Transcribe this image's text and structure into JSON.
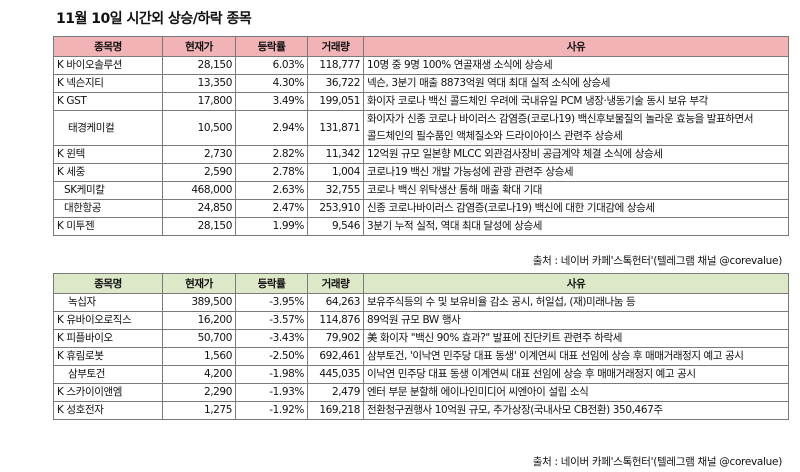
{
  "title": "11월 10일  시간외 상승/하락 종목",
  "headers": [
    "종목명",
    "현재가",
    "등락률",
    "거래량",
    "사유"
  ],
  "rise": [
    {
      "name": "K 바이오솔루션",
      "price": "28,150",
      "change": "6.03%",
      "volume": "118,777",
      "reason": "10명 중 9명 100% 연골재생 소식에 상승세"
    },
    {
      "name": "K 넥슨지티",
      "price": "13,350",
      "change": "4.30%",
      "volume": "36,722",
      "reason": "넥슨, 3분기 매출 8873억원 역대 최대 실적 소식에 상승세"
    },
    {
      "name": "K GST",
      "price": "17,800",
      "change": "3.49%",
      "volume": "199,051",
      "reason": "화이자 코로나 백신 콜드체인 우려에 국내유일 PCM 냉장·냉동기술 동시 보유 부각"
    },
    {
      "name": "태경케미컬",
      "price": "10,500",
      "change": "2.94%",
      "volume": "131,871",
      "reason": "화이자가 신종 코로나 바이러스 감염증(코로나19) 백신후보물질의 놀라운 효능을 발표하면서 콜드체인의 필수품인 액체질소와 드라이아이스 관련주 상승세"
    },
    {
      "name": "K 윈텍",
      "price": "2,730",
      "change": "2.82%",
      "volume": "11,342",
      "reason": "12억원 규모 일본향 MLCC 외관검사장비 공급계약 체결 소식에 상승세"
    },
    {
      "name": "K 세중",
      "price": "2,590",
      "change": "2.78%",
      "volume": "1,004",
      "reason": "코로나19 백신 개발 가능성에 관광 관련주 상승세"
    },
    {
      "name": "SK케미칼",
      "price": "468,000",
      "change": "2.63%",
      "volume": "32,755",
      "reason": "코로나 백신 위탁생산 통해 매출 확대 기대"
    },
    {
      "name": "대한항공",
      "price": "24,850",
      "change": "2.47%",
      "volume": "253,910",
      "reason": "신종 코로나바이러스 감염증(코로나19) 백신에 대한 기대감에 상승세"
    },
    {
      "name": "K 미투젠",
      "price": "28,150",
      "change": "1.99%",
      "volume": "9,546",
      "reason": "3분기 누적 실적, 역대 최대 달성에 상승세"
    }
  ],
  "source1": "출처 : 네이버 카페'스톡헌터'(텔레그램 채널 @corevalue)",
  "fall": [
    {
      "name": "녹십자",
      "price": "389,500",
      "change": "-3.95%",
      "volume": "64,263",
      "reason": "보유주식등의 수 및 보유비율 감소 공시, 허일섭, (재)미래나눔 등"
    },
    {
      "name": "K 유바이오로직스",
      "price": "16,200",
      "change": "-3.57%",
      "volume": "114,876",
      "reason": "89억원 규모 BW 행사"
    },
    {
      "name": "K 피플바이오",
      "price": "50,700",
      "change": "-3.43%",
      "volume": "79,902",
      "reason": "美 화이자 \"백신 90% 효과?\" 발표에 진단키트 관련주 하락세"
    },
    {
      "name": "K 휴림로봇",
      "price": "1,560",
      "change": "-2.50%",
      "volume": "692,461",
      "reason": "삼부토건, '이낙연 민주당 대표 동생' 이계연씨 대표 선임에 상승 후 매매거래정지 예고 공시"
    },
    {
      "name": "삼부토건",
      "price": "4,200",
      "change": "-1.98%",
      "volume": "445,035",
      "reason": "이낙연 민주당 대표 동생 이계연씨 대표 선임에 상승 후 매매거래정지 예고 공시"
    },
    {
      "name": "K 스카이이앤엠",
      "price": "2,290",
      "change": "-1.93%",
      "volume": "2,479",
      "reason": "엔터 부문 분할해 에이나인미디어 씨엔아이 설립 소식"
    },
    {
      "name": "K 성호전자",
      "price": "1,275",
      "change": "-1.92%",
      "volume": "169,218",
      "reason": "전환청구권행사 10억원 규모, 추가상장(국내사모 CB전환)   350,467주"
    }
  ],
  "source2": "출처 : 네이버 카페'스톡헌터'(텔레그램 채널 @corevalue)"
}
